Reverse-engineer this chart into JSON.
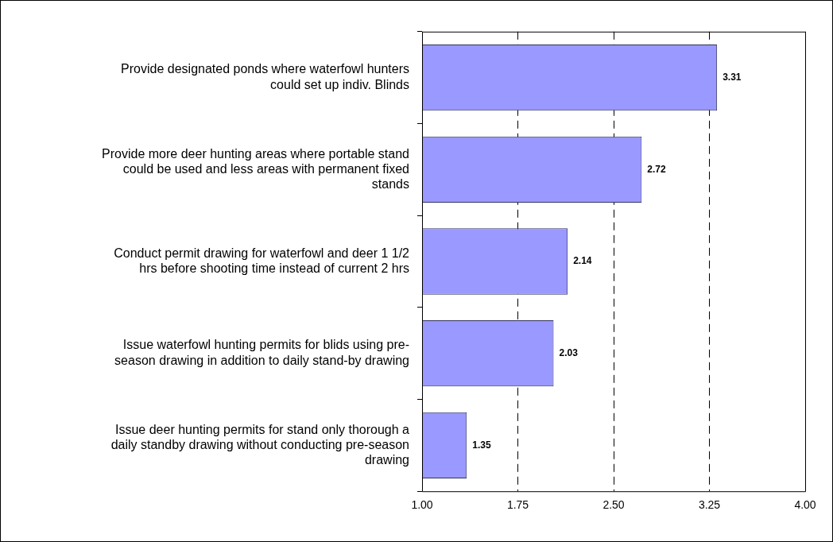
{
  "chart_data": {
    "type": "bar",
    "orientation": "horizontal",
    "categories": [
      "Provide designated ponds where waterfowl hunters could set up indiv. Blinds",
      "Provide more deer hunting areas where portable stand could be used and less areas with permanent fixed stands",
      "Conduct permit drawing for waterfowl and deer 1 1/2 hrs before shooting time instead of current 2 hrs",
      "Issue waterfowl hunting permits for blids using pre-season drawing in addition to daily stand-by drawing",
      "Issue deer hunting permits for stand only thorough a daily standby drawing without conducting pre-season drawing"
    ],
    "values": [
      3.31,
      2.72,
      2.14,
      2.03,
      1.35
    ],
    "color": "#9999ff",
    "xlim": [
      1,
      4
    ],
    "xticks": [
      {
        "value": 1,
        "label": "1.00"
      },
      {
        "value": 1.75,
        "label": "1.75"
      },
      {
        "value": 2.5,
        "label": "2.50"
      },
      {
        "value": 3.25,
        "label": "3.25"
      },
      {
        "value": 4,
        "label": "4.00"
      }
    ],
    "grid": "x",
    "data_labels": true,
    "legend": false
  }
}
